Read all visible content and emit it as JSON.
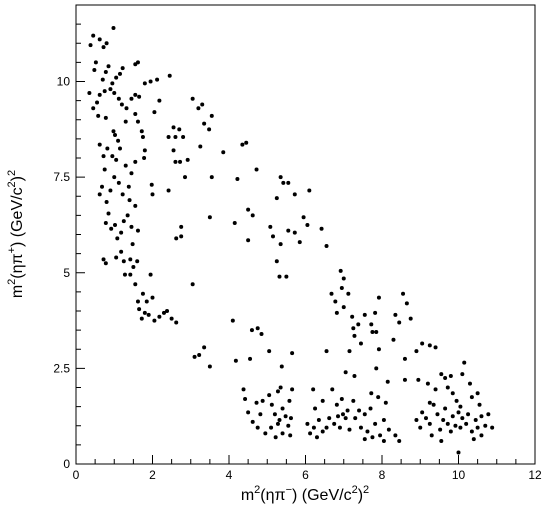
{
  "chart_data": {
    "type": "scatter",
    "title": "",
    "xlabel": {
      "base1": "m",
      "sup1": "2",
      "mid": "(ηπ",
      "sup2": "−",
      "tail": ") (GeV/c",
      "sup3": "2",
      "end": ")",
      "sup4": "2"
    },
    "ylabel": {
      "base1": "m",
      "sup1": "2",
      "mid": "(ηπ",
      "sup2": "+",
      "tail": ") (GeV/c",
      "sup3": "2",
      "end": ")",
      "sup4": "2"
    },
    "xlim": [
      0,
      12
    ],
    "ylim": [
      0,
      12
    ],
    "x_ticks": [
      "0",
      "2",
      "4",
      "6",
      "8",
      "10",
      "12"
    ],
    "y_ticks": [
      "0",
      "2.5",
      "5",
      "7.5",
      "10"
    ],
    "grid": false,
    "marker_color": "#000000",
    "points": [
      [
        0.38,
        10.95
      ],
      [
        0.45,
        11.2
      ],
      [
        0.62,
        11.1
      ],
      [
        0.72,
        10.9
      ],
      [
        0.8,
        11.0
      ],
      [
        0.98,
        11.4
      ],
      [
        0.52,
        10.5
      ],
      [
        0.48,
        10.3
      ],
      [
        0.85,
        10.4
      ],
      [
        0.78,
        10.25
      ],
      [
        1.05,
        10.1
      ],
      [
        1.15,
        10.2
      ],
      [
        1.22,
        10.35
      ],
      [
        0.95,
        9.95
      ],
      [
        0.7,
        10.05
      ],
      [
        1.55,
        10.45
      ],
      [
        1.62,
        10.5
      ],
      [
        0.35,
        9.7
      ],
      [
        0.45,
        9.3
      ],
      [
        0.55,
        9.45
      ],
      [
        0.62,
        9.65
      ],
      [
        0.75,
        9.75
      ],
      [
        0.9,
        9.8
      ],
      [
        1.0,
        9.7
      ],
      [
        1.12,
        9.55
      ],
      [
        1.2,
        9.4
      ],
      [
        1.32,
        9.3
      ],
      [
        1.45,
        9.55
      ],
      [
        1.55,
        9.65
      ],
      [
        1.65,
        9.6
      ],
      [
        1.8,
        9.95
      ],
      [
        1.95,
        10.0
      ],
      [
        2.12,
        10.05
      ],
      [
        2.45,
        10.15
      ],
      [
        2.18,
        9.5
      ],
      [
        2.05,
        9.2
      ],
      [
        0.58,
        9.1
      ],
      [
        0.78,
        9.05
      ],
      [
        0.98,
        8.7
      ],
      [
        1.02,
        8.6
      ],
      [
        1.1,
        8.45
      ],
      [
        1.3,
        8.95
      ],
      [
        1.55,
        9.15
      ],
      [
        1.62,
        8.95
      ],
      [
        1.72,
        8.7
      ],
      [
        1.75,
        8.55
      ],
      [
        1.8,
        8.2
      ],
      [
        1.78,
        8.0
      ],
      [
        0.62,
        8.35
      ],
      [
        0.72,
        8.05
      ],
      [
        0.82,
        8.25
      ],
      [
        0.95,
        8.05
      ],
      [
        1.05,
        7.95
      ],
      [
        1.15,
        8.25
      ],
      [
        1.3,
        7.8
      ],
      [
        1.45,
        7.6
      ],
      [
        1.55,
        7.9
      ],
      [
        0.75,
        7.7
      ],
      [
        0.68,
        7.25
      ],
      [
        0.62,
        7.05
      ],
      [
        0.9,
        7.15
      ],
      [
        1.0,
        7.5
      ],
      [
        1.12,
        7.35
      ],
      [
        1.22,
        7.05
      ],
      [
        1.38,
        7.25
      ],
      [
        1.4,
        6.9
      ],
      [
        0.8,
        6.85
      ],
      [
        0.85,
        6.55
      ],
      [
        0.78,
        6.3
      ],
      [
        0.92,
        6.15
      ],
      [
        1.02,
        6.25
      ],
      [
        1.08,
        5.9
      ],
      [
        1.18,
        6.05
      ],
      [
        1.25,
        6.35
      ],
      [
        1.35,
        6.5
      ],
      [
        1.45,
        6.2
      ],
      [
        1.48,
        5.75
      ],
      [
        1.55,
        6.75
      ],
      [
        1.62,
        6.1
      ],
      [
        0.72,
        5.35
      ],
      [
        0.78,
        5.25
      ],
      [
        1.05,
        5.4
      ],
      [
        1.18,
        5.55
      ],
      [
        1.25,
        5.3
      ],
      [
        1.42,
        5.35
      ],
      [
        1.5,
        5.15
      ],
      [
        1.6,
        5.3
      ],
      [
        1.28,
        4.95
      ],
      [
        1.42,
        4.95
      ],
      [
        1.55,
        4.7
      ],
      [
        1.75,
        4.45
      ],
      [
        1.85,
        4.25
      ],
      [
        1.62,
        4.25
      ],
      [
        1.95,
        4.95
      ],
      [
        1.65,
        4.05
      ],
      [
        1.8,
        3.95
      ],
      [
        1.72,
        3.8
      ],
      [
        1.9,
        3.9
      ],
      [
        2.05,
        3.75
      ],
      [
        2.0,
        4.35
      ],
      [
        2.18,
        3.85
      ],
      [
        2.3,
        3.95
      ],
      [
        2.5,
        3.8
      ],
      [
        2.62,
        3.7
      ],
      [
        2.38,
        4.0
      ],
      [
        1.98,
        7.3
      ],
      [
        2.0,
        7.05
      ],
      [
        2.42,
        8.55
      ],
      [
        2.6,
        8.55
      ],
      [
        2.55,
        8.8
      ],
      [
        2.55,
        8.2
      ],
      [
        2.7,
        8.75
      ],
      [
        2.8,
        8.55
      ],
      [
        2.72,
        7.9
      ],
      [
        2.92,
        7.95
      ],
      [
        2.85,
        7.5
      ],
      [
        2.6,
        7.9
      ],
      [
        2.75,
        6.2
      ],
      [
        2.75,
        5.95
      ],
      [
        2.62,
        5.9
      ],
      [
        2.42,
        7.15
      ],
      [
        3.05,
        9.55
      ],
      [
        3.2,
        9.3
      ],
      [
        3.3,
        9.4
      ],
      [
        3.35,
        8.9
      ],
      [
        3.48,
        8.75
      ],
      [
        3.55,
        9.1
      ],
      [
        3.25,
        8.3
      ],
      [
        3.55,
        7.5
      ],
      [
        3.85,
        8.15
      ],
      [
        3.5,
        6.45
      ],
      [
        3.05,
        4.7
      ],
      [
        3.1,
        2.8
      ],
      [
        3.22,
        2.85
      ],
      [
        3.35,
        3.05
      ],
      [
        3.5,
        2.55
      ],
      [
        4.1,
        3.75
      ],
      [
        4.15,
        6.3
      ],
      [
        4.22,
        7.45
      ],
      [
        4.35,
        8.35
      ],
      [
        4.45,
        8.4
      ],
      [
        4.5,
        6.65
      ],
      [
        4.62,
        6.5
      ],
      [
        4.5,
        5.85
      ],
      [
        4.72,
        7.7
      ],
      [
        4.75,
        3.55
      ],
      [
        4.85,
        3.4
      ],
      [
        4.6,
        3.5
      ],
      [
        4.55,
        2.75
      ],
      [
        4.18,
        2.7
      ],
      [
        4.38,
        1.95
      ],
      [
        4.42,
        1.7
      ],
      [
        4.5,
        1.35
      ],
      [
        4.62,
        1.1
      ],
      [
        4.72,
        1.6
      ],
      [
        4.82,
        1.3
      ],
      [
        4.88,
        1.65
      ],
      [
        4.75,
        0.95
      ],
      [
        4.95,
        0.8
      ],
      [
        5.05,
        1.8
      ],
      [
        5.12,
        1.55
      ],
      [
        5.2,
        1.3
      ],
      [
        5.28,
        1.05
      ],
      [
        5.1,
        0.95
      ],
      [
        5.22,
        0.7
      ],
      [
        5.32,
        1.15
      ],
      [
        5.4,
        1.45
      ],
      [
        5.48,
        1.25
      ],
      [
        5.55,
        1.0
      ],
      [
        5.62,
        1.2
      ],
      [
        5.4,
        0.8
      ],
      [
        5.6,
        0.75
      ],
      [
        5.28,
        1.9
      ],
      [
        5.35,
        2.0
      ],
      [
        5.58,
        1.65
      ],
      [
        5.65,
        1.95
      ],
      [
        5.05,
        2.95
      ],
      [
        5.38,
        2.55
      ],
      [
        5.65,
        2.9
      ],
      [
        5.25,
        6.95
      ],
      [
        5.35,
        7.5
      ],
      [
        5.42,
        7.35
      ],
      [
        5.55,
        7.35
      ],
      [
        5.72,
        7.05
      ],
      [
        5.25,
        5.3
      ],
      [
        5.35,
        5.75
      ],
      [
        5.55,
        6.1
      ],
      [
        5.72,
        6.05
      ],
      [
        5.85,
        5.8
      ],
      [
        5.95,
        6.45
      ],
      [
        6.05,
        6.25
      ],
      [
        6.1,
        7.15
      ],
      [
        5.08,
        6.2
      ],
      [
        5.15,
        5.95
      ],
      [
        5.32,
        4.9
      ],
      [
        5.5,
        4.9
      ],
      [
        6.42,
        6.15
      ],
      [
        6.55,
        5.7
      ],
      [
        6.68,
        4.45
      ],
      [
        6.78,
        4.25
      ],
      [
        6.82,
        3.95
      ],
      [
        6.95,
        4.6
      ],
      [
        6.92,
        5.05
      ],
      [
        7.0,
        4.85
      ],
      [
        7.12,
        4.45
      ],
      [
        7.0,
        4.1
      ],
      [
        7.22,
        3.85
      ],
      [
        7.25,
        3.55
      ],
      [
        7.28,
        3.35
      ],
      [
        7.38,
        3.65
      ],
      [
        7.45,
        3.15
      ],
      [
        7.55,
        3.9
      ],
      [
        7.72,
        3.65
      ],
      [
        7.82,
        3.95
      ],
      [
        7.92,
        4.35
      ],
      [
        7.75,
        3.45
      ],
      [
        7.85,
        3.45
      ],
      [
        7.92,
        3.0
      ],
      [
        8.3,
        3.25
      ],
      [
        8.35,
        3.9
      ],
      [
        8.45,
        3.7
      ],
      [
        8.55,
        4.45
      ],
      [
        8.65,
        4.2
      ],
      [
        8.75,
        3.8
      ],
      [
        8.9,
        2.95
      ],
      [
        8.6,
        2.75
      ],
      [
        9.05,
        3.15
      ],
      [
        9.25,
        3.1
      ],
      [
        9.4,
        3.05
      ],
      [
        9.55,
        2.35
      ],
      [
        9.65,
        2.25
      ],
      [
        9.8,
        2.3
      ],
      [
        10.1,
        2.35
      ],
      [
        10.15,
        2.65
      ],
      [
        10.3,
        2.1
      ],
      [
        10.5,
        1.85
      ],
      [
        9.4,
        1.95
      ],
      [
        9.72,
        2.0
      ],
      [
        9.85,
        1.85
      ],
      [
        9.95,
        1.65
      ],
      [
        10.05,
        1.5
      ],
      [
        8.15,
        2.15
      ],
      [
        8.6,
        2.2
      ],
      [
        8.95,
        2.2
      ],
      [
        9.2,
        2.1
      ],
      [
        7.15,
        2.95
      ],
      [
        7.28,
        2.3
      ],
      [
        7.05,
        2.4
      ],
      [
        7.85,
        2.5
      ],
      [
        7.72,
        1.85
      ],
      [
        7.9,
        1.75
      ],
      [
        8.1,
        1.6
      ],
      [
        6.2,
        1.95
      ],
      [
        6.7,
        1.95
      ],
      [
        6.82,
        1.55
      ],
      [
        6.95,
        1.7
      ],
      [
        6.55,
        2.95
      ],
      [
        6.05,
        1.05
      ],
      [
        6.12,
        0.8
      ],
      [
        6.22,
        0.95
      ],
      [
        6.35,
        1.15
      ],
      [
        6.45,
        0.85
      ],
      [
        6.55,
        0.95
      ],
      [
        6.62,
        1.2
      ],
      [
        6.75,
        1.05
      ],
      [
        6.9,
        0.95
      ],
      [
        6.98,
        1.3
      ],
      [
        7.05,
        1.2
      ],
      [
        7.15,
        0.9
      ],
      [
        7.3,
        1.2
      ],
      [
        7.45,
        0.95
      ],
      [
        7.55,
        1.3
      ],
      [
        7.62,
        0.85
      ],
      [
        7.7,
        1.45
      ],
      [
        7.82,
        1.05
      ],
      [
        7.95,
        0.75
      ],
      [
        8.05,
        1.15
      ],
      [
        8.18,
        0.9
      ],
      [
        8.35,
        0.75
      ],
      [
        8.45,
        0.6
      ],
      [
        8.05,
        0.6
      ],
      [
        7.75,
        0.7
      ],
      [
        7.55,
        0.65
      ],
      [
        7.4,
        1.4
      ],
      [
        7.25,
        1.65
      ],
      [
        7.1,
        1.4
      ],
      [
        6.25,
        1.45
      ],
      [
        6.3,
        0.7
      ],
      [
        6.45,
        1.65
      ],
      [
        6.85,
        1.25
      ],
      [
        8.9,
        1.15
      ],
      [
        9.0,
        0.95
      ],
      [
        9.05,
        1.35
      ],
      [
        9.15,
        1.2
      ],
      [
        9.25,
        1.05
      ],
      [
        9.3,
        0.75
      ],
      [
        9.35,
        1.55
      ],
      [
        9.45,
        1.3
      ],
      [
        9.52,
        0.9
      ],
      [
        9.6,
        1.15
      ],
      [
        9.65,
        1.45
      ],
      [
        9.72,
        1.05
      ],
      [
        9.8,
        0.85
      ],
      [
        9.85,
        1.25
      ],
      [
        9.92,
        1.0
      ],
      [
        10.0,
        1.35
      ],
      [
        10.05,
        0.95
      ],
      [
        10.1,
        1.2
      ],
      [
        10.2,
        1.05
      ],
      [
        10.25,
        1.3
      ],
      [
        10.35,
        0.85
      ],
      [
        10.45,
        1.15
      ],
      [
        10.5,
        0.95
      ],
      [
        10.55,
        1.55
      ],
      [
        10.6,
        1.25
      ],
      [
        10.7,
        1.0
      ],
      [
        10.78,
        1.3
      ],
      [
        10.88,
        0.95
      ],
      [
        10.4,
        0.65
      ],
      [
        10.0,
        0.3
      ],
      [
        9.55,
        0.6
      ],
      [
        10.35,
        1.75
      ],
      [
        10.6,
        0.75
      ],
      [
        9.25,
        1.6
      ]
    ]
  }
}
